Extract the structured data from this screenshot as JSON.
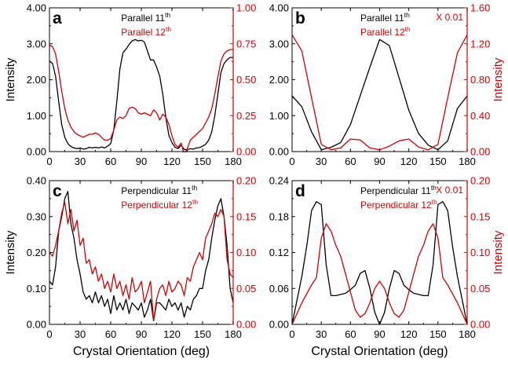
{
  "figure": {
    "left_color": "#000000",
    "right_color": "#d40000",
    "x_label": "Crystal Orientation (deg)",
    "y_left_label": "Intensity",
    "y_right_label": "Intensity"
  },
  "chart_data": [
    {
      "panel": "a",
      "type": "line",
      "xlim": [
        0,
        180
      ],
      "x_ticks": [
        "0",
        "30",
        "60",
        "90",
        "120",
        "150",
        "180"
      ],
      "y_left": {
        "ylim": [
          0,
          4
        ],
        "ticks": [
          "0.00",
          "1.00",
          "2.00",
          "3.00",
          "4.00"
        ],
        "label": "Intensity"
      },
      "y_right": {
        "ylim": [
          0,
          1
        ],
        "ticks": [
          "0.00",
          "0.25",
          "0.50",
          "0.75",
          "1.00"
        ],
        "label": ""
      },
      "annotation": "",
      "series": [
        {
          "name": "Parallel 11",
          "sup": "th",
          "axis": "left",
          "color": "#000000",
          "x": [
            0,
            3,
            6,
            9,
            12,
            15,
            18,
            21,
            24,
            27,
            30,
            33,
            36,
            39,
            42,
            45,
            48,
            51,
            54,
            57,
            60,
            63,
            66,
            69,
            72,
            75,
            78,
            81,
            84,
            87,
            90,
            93,
            96,
            99,
            102,
            105,
            108,
            111,
            114,
            117,
            120,
            123,
            126,
            129,
            132,
            135,
            138,
            141,
            144,
            147,
            150,
            153,
            156,
            159,
            162,
            165,
            168,
            171,
            174,
            177,
            180
          ],
          "y": [
            2.52,
            2.45,
            2.1,
            1.4,
            0.75,
            0.4,
            0.22,
            0.14,
            0.1,
            0.08,
            0.1,
            0.07,
            0.08,
            0.12,
            0.1,
            0.12,
            0.1,
            0.13,
            0.1,
            0.15,
            0.22,
            0.6,
            1.4,
            2.3,
            2.75,
            2.85,
            2.98,
            3.08,
            3.12,
            3.08,
            3.1,
            3.05,
            2.8,
            2.55,
            2.55,
            2.35,
            2.1,
            1.6,
            0.95,
            0.45,
            0.25,
            0.12,
            0.08,
            0.18,
            0.06,
            0.05,
            0.08,
            0.07,
            0.1,
            0.11,
            0.15,
            0.2,
            0.32,
            0.55,
            1.0,
            1.6,
            2.2,
            2.45,
            2.55,
            2.62,
            2.62
          ]
        },
        {
          "name": "Parallel 12",
          "sup": "th",
          "axis": "right",
          "color": "#d40000",
          "x": [
            0,
            3,
            6,
            9,
            12,
            15,
            18,
            21,
            24,
            27,
            30,
            33,
            36,
            39,
            42,
            45,
            48,
            51,
            54,
            57,
            60,
            63,
            66,
            69,
            72,
            75,
            78,
            81,
            84,
            87,
            90,
            93,
            96,
            99,
            102,
            105,
            108,
            111,
            114,
            117,
            120,
            123,
            126,
            129,
            132,
            135,
            138,
            141,
            144,
            147,
            150,
            153,
            156,
            159,
            162,
            165,
            168,
            171,
            174,
            177,
            180
          ],
          "y": [
            0.74,
            0.73,
            0.68,
            0.56,
            0.42,
            0.3,
            0.22,
            0.17,
            0.14,
            0.12,
            0.11,
            0.1,
            0.11,
            0.12,
            0.12,
            0.13,
            0.12,
            0.1,
            0.08,
            0.08,
            0.09,
            0.15,
            0.22,
            0.24,
            0.23,
            0.25,
            0.3,
            0.31,
            0.3,
            0.27,
            0.26,
            0.27,
            0.26,
            0.25,
            0.29,
            0.27,
            0.22,
            0.26,
            0.24,
            0.19,
            0.11,
            0.05,
            0.03,
            0.06,
            -0.02,
            0.02,
            0.08,
            0.1,
            0.12,
            0.14,
            0.16,
            0.2,
            0.24,
            0.3,
            0.4,
            0.52,
            0.63,
            0.68,
            0.7,
            0.71,
            0.71
          ]
        }
      ]
    },
    {
      "panel": "b",
      "type": "line",
      "xlim": [
        0,
        180
      ],
      "x_ticks": [
        "0",
        "30",
        "60",
        "90",
        "120",
        "150",
        "180"
      ],
      "y_left": {
        "ylim": [
          0,
          4
        ],
        "ticks": [
          "0.00",
          "1.00",
          "2.00",
          "3.00",
          "4.00"
        ],
        "label": ""
      },
      "y_right": {
        "ylim": [
          0,
          1.6
        ],
        "ticks": [
          "0.00",
          "0.40",
          "0.80",
          "1.20",
          "1.60"
        ],
        "label": "Intensity"
      },
      "annotation": "X 0.01",
      "series": [
        {
          "name": "Parallel 11",
          "sup": "th",
          "axis": "left",
          "color": "#000000",
          "x": [
            0,
            10,
            20,
            30,
            40,
            50,
            60,
            70,
            80,
            90,
            100,
            110,
            120,
            130,
            140,
            150,
            160,
            170,
            180
          ],
          "y": [
            1.55,
            1.25,
            0.55,
            0.05,
            0.12,
            0.25,
            0.75,
            1.55,
            2.35,
            3.12,
            2.95,
            2.05,
            1.15,
            0.5,
            0.18,
            0.05,
            0.3,
            1.2,
            1.55
          ]
        },
        {
          "name": "Parallel 12",
          "sup": "th",
          "axis": "right",
          "color": "#d40000",
          "x": [
            0,
            10,
            20,
            30,
            40,
            50,
            60,
            70,
            80,
            90,
            100,
            110,
            120,
            130,
            140,
            150,
            160,
            170,
            180
          ],
          "y": [
            1.3,
            1.12,
            0.6,
            0.08,
            0.02,
            0.04,
            0.14,
            0.13,
            0.04,
            0.02,
            0.06,
            0.12,
            0.14,
            0.05,
            0.02,
            0.08,
            0.6,
            1.1,
            1.3
          ]
        }
      ]
    },
    {
      "panel": "c",
      "type": "line",
      "xlim": [
        0,
        180
      ],
      "x_ticks": [
        "0",
        "30",
        "60",
        "90",
        "120",
        "150",
        "180"
      ],
      "y_left": {
        "ylim": [
          0,
          0.4
        ],
        "ticks": [
          "0.00",
          "0.10",
          "0.20",
          "0.30",
          "0.40"
        ],
        "label": "Intensity"
      },
      "y_right": {
        "ylim": [
          0,
          0.2
        ],
        "ticks": [
          "0.00",
          "0.05",
          "0.10",
          "0.15",
          "0.20"
        ],
        "label": ""
      },
      "annotation": "",
      "series": [
        {
          "name": "Perpendicular 11",
          "sup": "th",
          "axis": "left",
          "color": "#000000",
          "x": [
            0,
            3,
            6,
            9,
            12,
            15,
            18,
            21,
            24,
            27,
            30,
            33,
            36,
            39,
            42,
            45,
            48,
            51,
            54,
            57,
            60,
            63,
            66,
            69,
            72,
            75,
            78,
            81,
            84,
            87,
            90,
            93,
            96,
            99,
            102,
            105,
            108,
            111,
            114,
            117,
            120,
            123,
            126,
            129,
            132,
            135,
            138,
            141,
            144,
            147,
            150,
            153,
            156,
            159,
            162,
            165,
            168,
            171,
            174,
            177,
            180
          ],
          "y": [
            0.12,
            0.11,
            0.16,
            0.26,
            0.3,
            0.35,
            0.37,
            0.28,
            0.24,
            0.18,
            0.14,
            0.09,
            0.07,
            0.08,
            0.06,
            0.09,
            0.06,
            0.08,
            0.05,
            0.07,
            0.03,
            0.08,
            0.04,
            0.06,
            0.04,
            0.07,
            0.03,
            0.06,
            0.05,
            0.04,
            0.06,
            0.02,
            0.04,
            0.07,
            0.01,
            0.06,
            0.06,
            0.05,
            0.04,
            0.07,
            0.05,
            0.06,
            0.04,
            0.06,
            0.02,
            0.05,
            0.04,
            0.07,
            0.08,
            0.1,
            0.1,
            0.15,
            0.18,
            0.24,
            0.29,
            0.33,
            0.35,
            0.3,
            0.22,
            0.1,
            0.06
          ]
        },
        {
          "name": "Perpendicular 12",
          "sup": "th",
          "axis": "right",
          "color": "#d40000",
          "x": [
            0,
            3,
            6,
            9,
            12,
            15,
            18,
            21,
            24,
            27,
            30,
            33,
            36,
            39,
            42,
            45,
            48,
            51,
            54,
            57,
            60,
            63,
            66,
            69,
            72,
            75,
            78,
            81,
            84,
            87,
            90,
            93,
            96,
            99,
            102,
            105,
            108,
            111,
            114,
            117,
            120,
            123,
            126,
            129,
            132,
            135,
            138,
            141,
            144,
            147,
            150,
            153,
            156,
            159,
            162,
            165,
            168,
            171,
            174,
            177,
            180
          ],
          "y": [
            0.1,
            0.095,
            0.11,
            0.13,
            0.155,
            0.17,
            0.14,
            0.16,
            0.13,
            0.145,
            0.11,
            0.12,
            0.085,
            0.09,
            0.07,
            0.08,
            0.06,
            0.07,
            0.05,
            0.06,
            0.045,
            0.07,
            0.05,
            0.06,
            0.04,
            0.055,
            0.035,
            0.065,
            0.045,
            0.05,
            0.06,
            0.03,
            0.045,
            0.06,
            0.005,
            0.035,
            0.05,
            0.055,
            0.04,
            0.06,
            0.045,
            0.05,
            0.06,
            0.055,
            0.04,
            0.065,
            0.06,
            0.08,
            0.09,
            0.1,
            0.09,
            0.12,
            0.13,
            0.14,
            0.155,
            0.15,
            0.16,
            0.15,
            0.09,
            0.07,
            0.065
          ]
        }
      ]
    },
    {
      "panel": "d",
      "type": "line",
      "xlim": [
        0,
        180
      ],
      "x_ticks": [
        "0",
        "30",
        "60",
        "90",
        "120",
        "150",
        "180"
      ],
      "y_left": {
        "ylim": [
          0,
          0.24
        ],
        "ticks": [
          "0.00",
          "0.06",
          "0.12",
          "0.18",
          "0.24"
        ],
        "label": ""
      },
      "y_right": {
        "ylim": [
          0,
          0.2
        ],
        "ticks": [
          "0.00",
          "0.05",
          "0.10",
          "0.15",
          "0.20"
        ],
        "label": "Intensity"
      },
      "annotation": "X 0.01",
      "series": [
        {
          "name": "Perpendicular 11",
          "sup": "th",
          "axis": "left",
          "color": "#000000",
          "x": [
            0,
            10,
            15,
            20,
            25,
            30,
            35,
            40,
            45,
            50,
            55,
            60,
            65,
            70,
            75,
            80,
            85,
            90,
            95,
            100,
            105,
            110,
            115,
            120,
            125,
            130,
            135,
            140,
            145,
            150,
            155,
            160,
            165,
            170,
            180
          ],
          "y": [
            0.0,
            0.08,
            0.13,
            0.19,
            0.205,
            0.2,
            0.1,
            0.048,
            0.048,
            0.05,
            0.052,
            0.058,
            0.065,
            0.085,
            0.09,
            0.06,
            0.02,
            0.0,
            0.02,
            0.06,
            0.09,
            0.085,
            0.065,
            0.058,
            0.052,
            0.05,
            0.048,
            0.048,
            0.1,
            0.2,
            0.205,
            0.19,
            0.13,
            0.08,
            0.0
          ]
        },
        {
          "name": "Perpendicular 12",
          "sup": "th",
          "axis": "right",
          "color": "#d40000",
          "x": [
            0,
            10,
            20,
            25,
            30,
            35,
            40,
            45,
            50,
            55,
            60,
            65,
            70,
            75,
            80,
            85,
            90,
            95,
            100,
            105,
            110,
            115,
            120,
            125,
            130,
            135,
            140,
            145,
            150,
            155,
            160,
            170,
            180
          ],
          "y": [
            0.0,
            0.03,
            0.055,
            0.065,
            0.12,
            0.14,
            0.13,
            0.11,
            0.095,
            0.07,
            0.045,
            0.02,
            0.01,
            0.015,
            0.03,
            0.05,
            0.06,
            0.05,
            0.03,
            0.015,
            0.01,
            0.02,
            0.045,
            0.07,
            0.095,
            0.11,
            0.13,
            0.14,
            0.12,
            0.065,
            0.055,
            0.03,
            0.0
          ]
        }
      ]
    }
  ]
}
